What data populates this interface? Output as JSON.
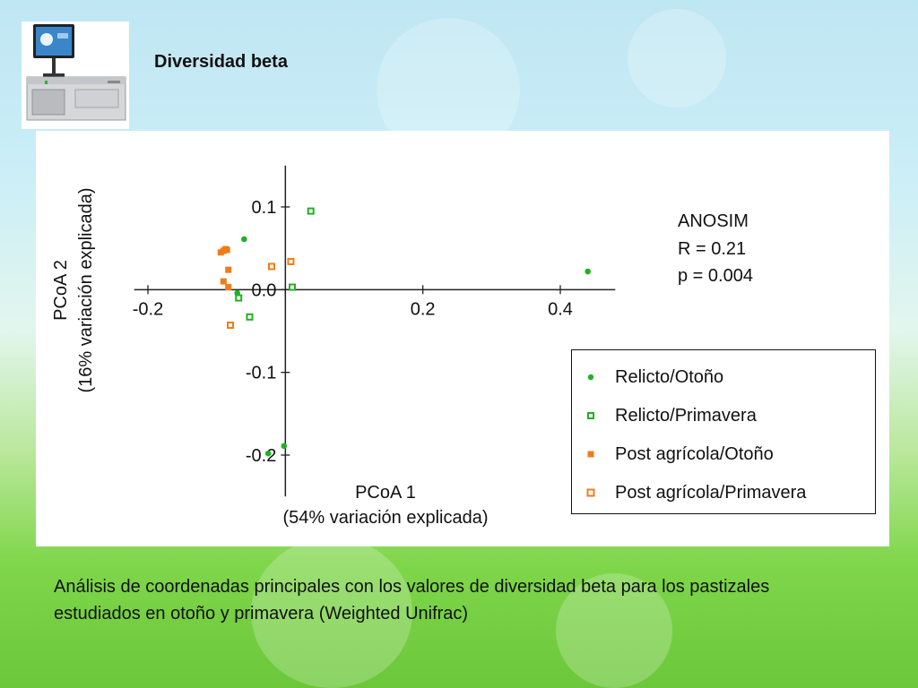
{
  "slide": {
    "title": "Diversidad beta",
    "caption": "Análisis de coordenadas principales con los valores de diversidad beta para los pastizales estudiados en otoño y primavera (Weighted Unifrac)"
  },
  "stats": {
    "test": "ANOSIM",
    "r": "R = 0.21",
    "p": "p = 0.004"
  },
  "colors": {
    "green": "#22b022",
    "orange": "#f07c18",
    "axis": "#222222"
  },
  "chart_data": {
    "type": "scatter",
    "xlabel": "PCoA 1",
    "xlabel_sub": "(54% variación explicada)",
    "ylabel": "PCoA 2",
    "ylabel_sub": "(16% variación explicada)",
    "xlim": [
      -0.22,
      0.48
    ],
    "ylim": [
      -0.25,
      0.15
    ],
    "x_ticks": [
      {
        "value": -0.2,
        "label": "-0.2"
      },
      {
        "value": 0.0,
        "label": "0.0"
      },
      {
        "value": 0.2,
        "label": "0.2"
      },
      {
        "value": 0.4,
        "label": "0.4"
      }
    ],
    "y_ticks": [
      {
        "value": 0.1,
        "label": "0.1"
      },
      {
        "value": 0.0,
        "label": "0.0"
      },
      {
        "value": -0.1,
        "label": "-0.1"
      },
      {
        "value": -0.2,
        "label": "-0.2"
      }
    ],
    "grid": false,
    "legend_position": "lower-right",
    "series": [
      {
        "name": "Relicto/Otoño",
        "marker": "dot",
        "color": "#22b022",
        "points": [
          [
            -0.06,
            0.061
          ],
          [
            -0.07,
            -0.004
          ],
          [
            0.44,
            0.022
          ],
          [
            -0.002,
            -0.189
          ],
          [
            -0.025,
            -0.198
          ]
        ]
      },
      {
        "name": "Relicto/Primavera",
        "marker": "open-square",
        "color": "#22b022",
        "points": [
          [
            0.037,
            0.095
          ],
          [
            0.01,
            0.003
          ],
          [
            -0.068,
            -0.01
          ],
          [
            -0.052,
            -0.033
          ]
        ]
      },
      {
        "name": "Post agrícola/Otoño",
        "marker": "square",
        "color": "#f07c18",
        "points": [
          [
            -0.094,
            0.045
          ],
          [
            -0.09,
            0.047
          ],
          [
            -0.087,
            0.049
          ],
          [
            -0.085,
            0.048
          ],
          [
            -0.083,
            0.024
          ],
          [
            -0.09,
            0.01
          ],
          [
            -0.083,
            0.003
          ]
        ]
      },
      {
        "name": "Post agrícola/Primavera",
        "marker": "open-square",
        "color": "#f07c18",
        "points": [
          [
            -0.02,
            0.028
          ],
          [
            0.008,
            0.034
          ],
          [
            -0.08,
            -0.043
          ]
        ]
      }
    ]
  }
}
